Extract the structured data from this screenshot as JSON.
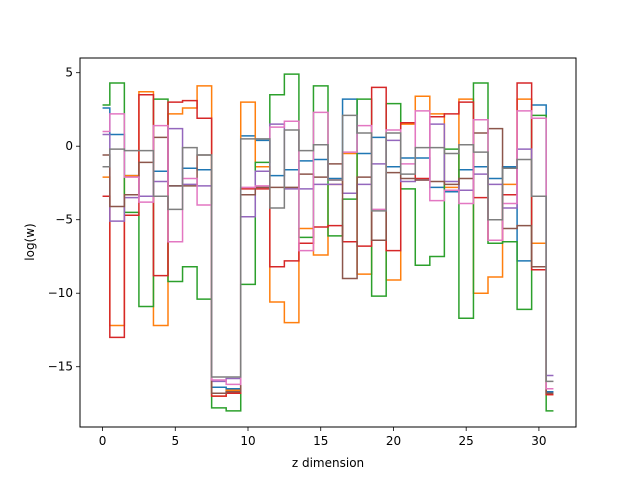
{
  "chart_data": {
    "type": "line",
    "drawstyle": "steps-mid",
    "title": "",
    "xlabel": "z dimension",
    "ylabel": "log(w)",
    "xlim": [
      -1.55,
      32.55
    ],
    "ylim": [
      -19.1,
      6.0
    ],
    "xticks": [
      0,
      5,
      10,
      15,
      20,
      25,
      30
    ],
    "yticks": [
      5,
      0,
      -5,
      -10,
      -15
    ],
    "ytick_labels": [
      "5",
      "0",
      "−5",
      "−10",
      "−15"
    ],
    "grid": false,
    "legend": "none",
    "x": [
      0,
      1,
      2,
      3,
      4,
      5,
      6,
      7,
      8,
      9,
      10,
      11,
      12,
      13,
      14,
      15,
      16,
      17,
      18,
      19,
      20,
      21,
      22,
      23,
      24,
      25,
      26,
      27,
      28,
      29,
      30,
      31
    ],
    "series": [
      {
        "color": "#1f77b4",
        "values": [
          2.6,
          0.8,
          -2.0,
          -3.4,
          -1.7,
          -2.7,
          -1.5,
          -1.6,
          -16.4,
          -16.5,
          0.7,
          0.4,
          -2.0,
          -1.6,
          -1.0,
          -0.9,
          -2.2,
          3.2,
          -0.5,
          0.6,
          -1.4,
          -0.8,
          -0.8,
          -2.8,
          -3.1,
          -1.6,
          -1.4,
          -2.2,
          -1.4,
          -7.8,
          2.8,
          -16.7
        ]
      },
      {
        "color": "#ff7f0e",
        "values": [
          -2.1,
          -12.2,
          -2.0,
          3.7,
          -12.2,
          2.2,
          2.6,
          4.1,
          -17.0,
          -16.6,
          3.0,
          -1.4,
          -10.6,
          -12.0,
          -5.6,
          -7.4,
          -2.6,
          -0.5,
          -8.7,
          -6.4,
          -9.1,
          1.5,
          3.4,
          2.2,
          -2.8,
          3.2,
          -10.0,
          -8.9,
          -2.6,
          3.2,
          -6.6,
          -16.9
        ]
      },
      {
        "color": "#2ca02c",
        "values": [
          2.8,
          4.3,
          -4.5,
          -10.9,
          3.2,
          -9.2,
          -8.2,
          -10.4,
          -17.8,
          -18.0,
          -9.4,
          -1.1,
          3.5,
          4.9,
          -6.2,
          4.1,
          -6.1,
          -3.6,
          3.2,
          -10.2,
          2.9,
          -2.9,
          -8.1,
          -7.5,
          -0.2,
          -11.7,
          4.3,
          -6.6,
          -6.5,
          -11.1,
          2.1,
          -18.0
        ]
      },
      {
        "color": "#d62728",
        "values": [
          -3.4,
          -13.0,
          -4.7,
          3.5,
          -8.8,
          3.0,
          3.1,
          1.9,
          -17.0,
          -16.8,
          -2.9,
          -2.9,
          -8.2,
          -7.8,
          -6.6,
          -5.5,
          -5.4,
          -6.5,
          -6.8,
          4.0,
          -7.1,
          1.6,
          -2.2,
          2.0,
          2.2,
          3.0,
          -3.5,
          -6.4,
          -3.3,
          4.3,
          -8.4,
          -16.9
        ]
      },
      {
        "color": "#9467bd",
        "values": [
          0.8,
          -5.1,
          -3.5,
          -3.4,
          -2.4,
          1.2,
          -2.6,
          -2.7,
          -16.0,
          -15.8,
          -4.8,
          -1.7,
          1.5,
          -2.9,
          -2.9,
          -2.6,
          -2.6,
          -3.2,
          -2.6,
          -1.2,
          0.4,
          -2.4,
          -2.3,
          1.5,
          -2.4,
          -3.0,
          -1.9,
          -2.6,
          -4.2,
          -0.2,
          -3.4,
          -15.6
        ]
      },
      {
        "color": "#8c564b",
        "values": [
          -0.6,
          -4.1,
          -3.3,
          -1.1,
          0.6,
          -2.7,
          -2.7,
          -0.6,
          -16.8,
          -16.7,
          -3.3,
          -2.8,
          -2.8,
          -2.8,
          -1.9,
          -2.1,
          -1.2,
          -9.0,
          -2.1,
          -6.4,
          -1.8,
          -2.2,
          -2.3,
          -2.4,
          -2.6,
          -2.2,
          0.9,
          1.2,
          -5.6,
          -5.4,
          -8.2,
          -16.8
        ]
      },
      {
        "color": "#e377c2",
        "values": [
          1.0,
          2.2,
          -2.1,
          -3.8,
          1.4,
          -6.5,
          -2.2,
          -4.0,
          -15.9,
          -16.2,
          -2.8,
          -2.7,
          1.3,
          1.7,
          -7.1,
          2.3,
          -2.3,
          -0.4,
          1.4,
          -4.3,
          1.1,
          -1.2,
          2.4,
          -3.7,
          -3.0,
          -3.9,
          1.8,
          -6.4,
          -3.9,
          2.4,
          1.9,
          -16.5
        ]
      },
      {
        "color": "#7f7f7f",
        "values": [
          -1.4,
          -0.2,
          -0.3,
          -0.3,
          -3.4,
          -4.3,
          -0.1,
          -0.6,
          -15.7,
          -15.7,
          0.5,
          0.5,
          -4.2,
          1.1,
          -0.3,
          0.1,
          -2.3,
          2.1,
          0.9,
          -4.4,
          0.9,
          -1.9,
          -0.1,
          -0.1,
          -0.5,
          0.1,
          -0.4,
          -5.0,
          -1.5,
          -0.9,
          -3.4,
          -16.0
        ]
      }
    ]
  }
}
